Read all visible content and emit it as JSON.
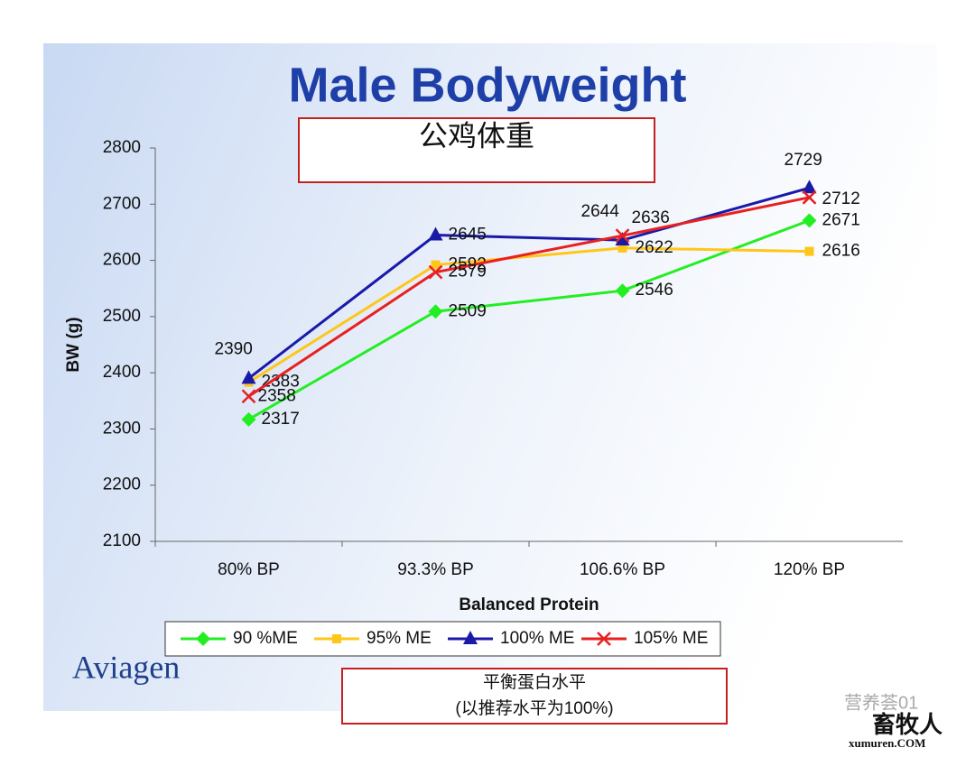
{
  "chart_data": {
    "type": "line",
    "title": "Male Bodyweight",
    "subtitle": "公鸡体重",
    "x_label": "Balanced Protein",
    "y_label": "BW (g)",
    "categories": [
      "80% BP",
      "93.3% BP",
      "106.6% BP",
      "120% BP"
    ],
    "series": [
      {
        "name": "90 %ME",
        "color": "#22ee22",
        "marker": "diamond",
        "values": [
          2317,
          2509,
          2546,
          2671
        ]
      },
      {
        "name": "95% ME",
        "color": "#ffc61a",
        "marker": "square",
        "values": [
          2383,
          2592,
          2622,
          2616
        ]
      },
      {
        "name": "100% ME",
        "color": "#1a1aa8",
        "marker": "triangle",
        "values": [
          2390,
          2645,
          2636,
          2729
        ]
      },
      {
        "name": "105% ME",
        "color": "#e82020",
        "marker": "x",
        "values": [
          2358,
          2579,
          2644,
          2712
        ]
      }
    ],
    "ylim": [
      2100,
      2800
    ],
    "yticks": [
      2100,
      2200,
      2300,
      2400,
      2500,
      2600,
      2700,
      2800
    ],
    "legend": "bottom",
    "annotation": [
      "平衡蛋白水平",
      "(以推荐水平为100%)"
    ]
  },
  "logo": "Aviagen",
  "watermark": {
    "account": "营养荟01",
    "brand": "畜牧人",
    "site": "xumuren.COM"
  }
}
